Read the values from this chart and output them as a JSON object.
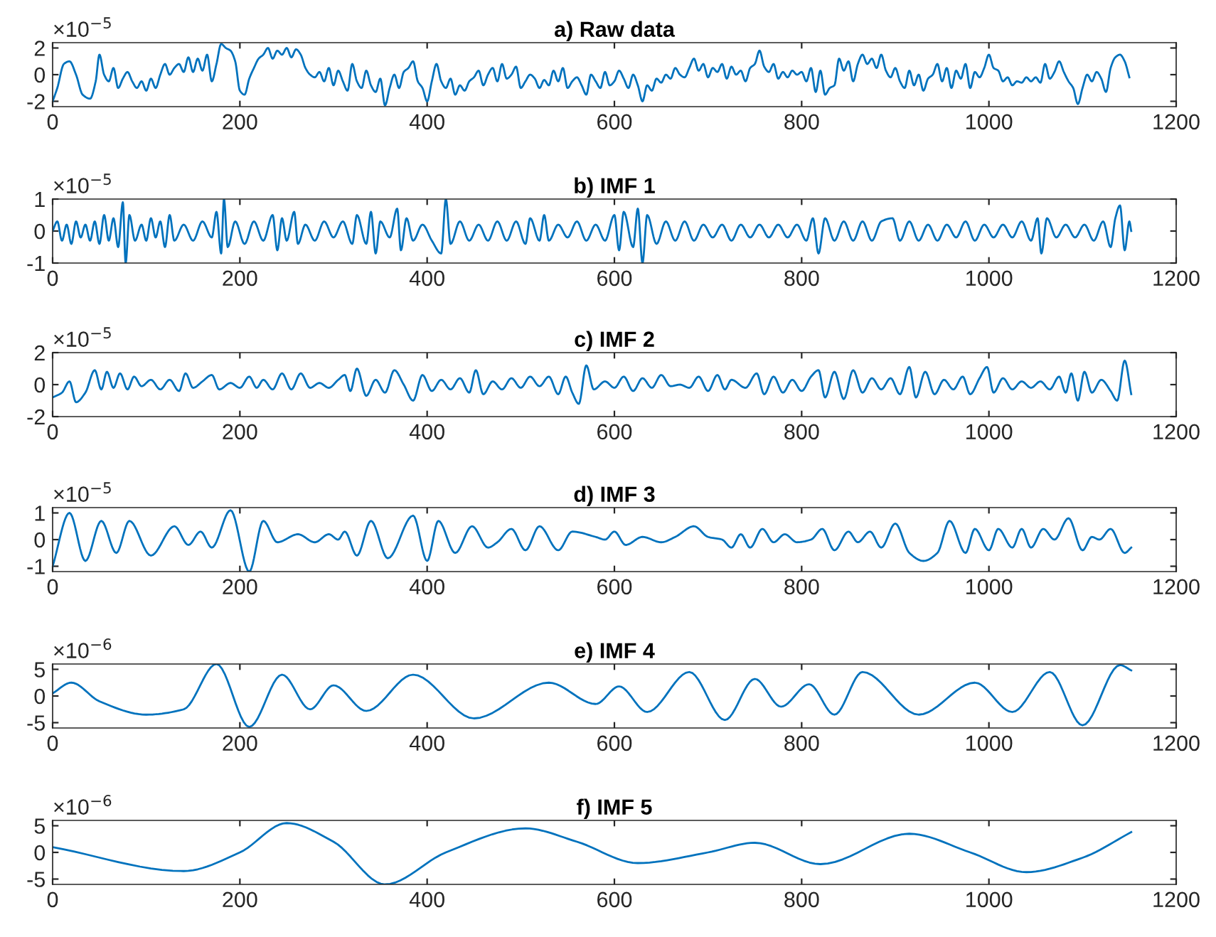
{
  "chart_data": [
    {
      "type": "line",
      "title": "a) Raw data",
      "annotations": [
        "×10$^{−5}$"
      ],
      "xlim": [
        0,
        1200
      ],
      "xticks": [
        0,
        200,
        400,
        600,
        800,
        1000,
        1200
      ],
      "ylim": [
        -2.4,
        2.4
      ],
      "yticks": [
        -2,
        0,
        2
      ],
      "x": [
        0,
        5,
        12,
        18,
        25,
        32,
        40,
        46,
        50,
        55,
        60,
        65,
        70,
        75,
        80,
        85,
        90,
        95,
        100,
        105,
        110,
        115,
        120,
        125,
        130,
        135,
        140,
        145,
        150,
        155,
        160,
        165,
        170,
        175,
        180,
        185,
        190,
        195,
        200,
        205,
        210,
        215,
        220,
        225,
        230,
        235,
        240,
        245,
        250,
        255,
        260,
        265,
        270,
        275,
        280,
        285,
        290,
        295,
        300,
        305,
        310,
        315,
        320,
        325,
        330,
        335,
        340,
        345,
        350,
        355,
        360,
        365,
        370,
        375,
        380,
        385,
        390,
        395,
        400,
        405,
        410,
        415,
        420,
        425,
        430,
        435,
        440,
        445,
        450,
        455,
        460,
        465,
        470,
        475,
        480,
        485,
        490,
        495,
        500,
        505,
        510,
        515,
        520,
        525,
        530,
        535,
        540,
        545,
        550,
        555,
        560,
        565,
        570,
        575,
        580,
        585,
        590,
        595,
        600,
        605,
        610,
        615,
        620,
        625,
        630,
        635,
        640,
        645,
        650,
        655,
        660,
        665,
        670,
        675,
        680,
        685,
        690,
        695,
        700,
        705,
        710,
        715,
        720,
        725,
        730,
        735,
        740,
        745,
        750,
        755,
        760,
        765,
        770,
        775,
        780,
        785,
        790,
        795,
        800,
        805,
        810,
        815,
        820,
        825,
        830,
        835,
        840,
        845,
        850,
        855,
        860,
        865,
        870,
        875,
        880,
        885,
        890,
        895,
        900,
        905,
        910,
        915,
        920,
        925,
        930,
        935,
        940,
        945,
        950,
        955,
        960,
        965,
        970,
        975,
        980,
        985,
        990,
        995,
        1000,
        1005,
        1010,
        1015,
        1020,
        1025,
        1030,
        1035,
        1040,
        1045,
        1050,
        1055,
        1060,
        1065,
        1070,
        1075,
        1080,
        1085,
        1090,
        1095,
        1100,
        1105,
        1110,
        1115,
        1120,
        1125,
        1130,
        1135,
        1140,
        1145,
        1150
      ],
      "series": [
        {
          "color": "#0072bd",
          "values": [
            -2,
            -1,
            0.8,
            1,
            0,
            -1.5,
            -1.8,
            -0.5,
            1.5,
            0,
            -0.5,
            0.5,
            -1,
            -0.3,
            0.2,
            -0.5,
            -1,
            -0.5,
            -1.2,
            -0.3,
            -1,
            0,
            0.8,
            0,
            0.5,
            0.8,
            0.2,
            1.3,
            0.2,
            1.2,
            0.3,
            1.5,
            -0.5,
            0.8,
            2.3,
            2,
            1.8,
            1,
            -1.2,
            -1.5,
            -0.3,
            0.5,
            1.2,
            1.5,
            2,
            1.2,
            1.8,
            1.5,
            2,
            1.3,
            1.9,
            1.5,
            0.5,
            0,
            -0.2,
            0.2,
            -0.5,
            0.5,
            -0.8,
            0.3,
            -0.5,
            -1.2,
            0.8,
            -0.5,
            -1,
            0.3,
            -0.8,
            -1.3,
            -0.3,
            -2.3,
            -1,
            0,
            -1,
            0.2,
            0.5,
            1,
            -0.5,
            -1,
            -2,
            -0.5,
            0.8,
            -0.5,
            -1,
            -0.3,
            -1.5,
            -0.8,
            -1.2,
            -0.5,
            -0.2,
            0.3,
            -0.8,
            0,
            0.5,
            -0.5,
            0.8,
            -0.3,
            0,
            0.6,
            -1,
            -0.5,
            0,
            -0.3,
            -1,
            -0.4,
            -0.8,
            0.3,
            -0.5,
            0.5,
            -1,
            -0.5,
            -0.2,
            -0.8,
            -1.5,
            0,
            -0.5,
            -1,
            0.2,
            -0.8,
            -0.5,
            0.3,
            -0.3,
            -1,
            0,
            -0.8,
            -2,
            -0.8,
            -1.2,
            -0.3,
            -0.6,
            0,
            -0.3,
            0.5,
            0,
            -0.2,
            0.5,
            1.2,
            0.3,
            0.8,
            -0.2,
            0.5,
            0.2,
            0.8,
            -0.3,
            0.6,
            0,
            0.3,
            -0.5,
            0.5,
            0.8,
            1.8,
            0.6,
            0.2,
            0.8,
            -0.3,
            0.2,
            -0.2,
            0.3,
            0,
            0.2,
            -0.5,
            0.5,
            -1.3,
            0.3,
            -1.5,
            -1,
            -0.8,
            1.2,
            0.3,
            1,
            -0.5,
            0.8,
            1.5,
            0.8,
            1.2,
            0.5,
            1.5,
            0.3,
            -0.2,
            0.5,
            -0.5,
            -1,
            0.3,
            -0.8,
            0,
            -1.2,
            -0.3,
            0,
            0.8,
            -0.5,
            0.5,
            -1,
            0.3,
            -0.3,
            0.8,
            -1,
            0.2,
            -0.2,
            0.5,
            1.5,
            0.5,
            0.3,
            -0.5,
            -0.2,
            -0.8,
            -0.5,
            -0.6,
            -0.2,
            -0.5,
            -0.2,
            -0.6,
            0.8,
            -0.3,
            0.2,
            1,
            0.2,
            -0.5,
            -1,
            -2.2,
            -1,
            0,
            -0.5,
            0.2,
            -0.3,
            -1.3,
            0.5,
            1.3,
            1.5,
            1,
            -0.2
          ]
        }
      ]
    },
    {
      "type": "line",
      "title": "b) IMF 1",
      "annotations": [
        "×10$^{−5}$"
      ],
      "xlim": [
        0,
        1200
      ],
      "xticks": [
        0,
        200,
        400,
        600,
        800,
        1000,
        1200
      ],
      "ylim": [
        -1,
        1
      ],
      "yticks": [
        -1,
        0,
        1
      ],
      "x": [
        0,
        5,
        10,
        15,
        20,
        25,
        30,
        35,
        40,
        45,
        50,
        55,
        60,
        65,
        70,
        75,
        78,
        82,
        88,
        95,
        100,
        105,
        110,
        115,
        120,
        125,
        130,
        140,
        150,
        160,
        170,
        175,
        180,
        183,
        187,
        195,
        205,
        215,
        225,
        235,
        240,
        245,
        250,
        258,
        262,
        270,
        280,
        290,
        300,
        310,
        320,
        325,
        335,
        340,
        345,
        350,
        360,
        368,
        372,
        378,
        385,
        395,
        405,
        415,
        420,
        425,
        435,
        445,
        455,
        465,
        475,
        485,
        495,
        505,
        510,
        520,
        525,
        530,
        540,
        550,
        560,
        570,
        580,
        590,
        600,
        605,
        610,
        620,
        625,
        630,
        635,
        645,
        655,
        665,
        675,
        685,
        695,
        705,
        715,
        725,
        735,
        745,
        755,
        765,
        775,
        785,
        795,
        805,
        812,
        818,
        825,
        835,
        845,
        855,
        865,
        875,
        885,
        897,
        905,
        915,
        925,
        935,
        945,
        955,
        965,
        975,
        985,
        995,
        1005,
        1015,
        1025,
        1035,
        1045,
        1052,
        1056,
        1062,
        1072,
        1082,
        1092,
        1102,
        1112,
        1122,
        1130,
        1135,
        1140,
        1145,
        1150,
        1152
      ],
      "series": [
        {
          "color": "#0072bd",
          "values": [
            0,
            0.3,
            -0.3,
            0.2,
            -0.4,
            0.3,
            -0.2,
            0.2,
            -0.3,
            0.3,
            -0.4,
            0.5,
            -0.3,
            0.4,
            -0.5,
            0.9,
            -1,
            0.5,
            -0.3,
            0.2,
            -0.3,
            0.4,
            -0.2,
            0.3,
            -0.5,
            0.5,
            -0.3,
            0.2,
            -0.3,
            0.3,
            -0.2,
            0.6,
            -0.7,
            1,
            -0.5,
            0.3,
            -0.4,
            0.3,
            -0.3,
            0.5,
            -0.6,
            0.4,
            -0.3,
            0.6,
            -0.4,
            0.2,
            -0.3,
            0.3,
            -0.2,
            0.3,
            -0.4,
            0.5,
            -0.4,
            0.6,
            -0.7,
            0.3,
            -0.2,
            0.7,
            -0.6,
            0.4,
            -0.3,
            0.2,
            -0.3,
            -0.7,
            1,
            -0.4,
            0.3,
            -0.3,
            0.2,
            -0.3,
            0.3,
            -0.3,
            0.3,
            -0.4,
            0.4,
            -0.3,
            0.5,
            -0.3,
            0.2,
            -0.2,
            0.3,
            -0.3,
            0.2,
            -0.3,
            0.5,
            -0.6,
            0.6,
            -0.5,
            0.7,
            -1,
            0.5,
            -0.4,
            0.3,
            -0.3,
            0.3,
            -0.3,
            0.2,
            -0.2,
            0.2,
            -0.3,
            0.2,
            -0.2,
            0.2,
            -0.2,
            0.2,
            -0.2,
            0.2,
            -0.3,
            0.4,
            -0.7,
            0.4,
            -0.3,
            0.3,
            -0.3,
            0.3,
            -0.3,
            0.3,
            0.4,
            -0.3,
            0.3,
            -0.3,
            0.2,
            -0.3,
            0.2,
            -0.2,
            0.3,
            -0.3,
            0.2,
            -0.2,
            0.2,
            -0.2,
            0.3,
            -0.3,
            0.4,
            -0.7,
            0.4,
            -0.2,
            0.2,
            -0.2,
            0.2,
            -0.3,
            0.3,
            -0.5,
            0.4,
            0.8,
            -0.6,
            0.3,
            0
          ]
        }
      ]
    },
    {
      "type": "line",
      "title": "c) IMF 2",
      "annotations": [
        "×10$^{−5}$"
      ],
      "xlim": [
        0,
        1200
      ],
      "xticks": [
        0,
        200,
        400,
        600,
        800,
        1000,
        1200
      ],
      "ylim": [
        -2,
        2
      ],
      "yticks": [
        -2,
        0,
        2
      ],
      "x": [
        0,
        10,
        18,
        25,
        35,
        45,
        52,
        58,
        65,
        72,
        80,
        87,
        95,
        105,
        115,
        125,
        135,
        142,
        150,
        160,
        170,
        178,
        190,
        200,
        210,
        218,
        225,
        235,
        245,
        255,
        265,
        275,
        285,
        295,
        305,
        312,
        318,
        325,
        335,
        345,
        355,
        365,
        375,
        385,
        395,
        405,
        415,
        425,
        435,
        445,
        452,
        460,
        470,
        480,
        490,
        500,
        510,
        520,
        530,
        540,
        548,
        555,
        562,
        570,
        578,
        590,
        600,
        610,
        620,
        630,
        640,
        650,
        660,
        670,
        680,
        690,
        700,
        710,
        718,
        725,
        740,
        752,
        760,
        770,
        780,
        790,
        800,
        810,
        818,
        825,
        835,
        845,
        855,
        865,
        875,
        885,
        895,
        905,
        915,
        922,
        932,
        942,
        952,
        962,
        972,
        980,
        990,
        998,
        1005,
        1015,
        1025,
        1035,
        1045,
        1055,
        1065,
        1075,
        1082,
        1088,
        1095,
        1102,
        1110,
        1120,
        1130,
        1137,
        1145,
        1152
      ],
      "series": [
        {
          "color": "#0072bd",
          "values": [
            -0.8,
            -0.5,
            0.2,
            -1.1,
            -0.5,
            0.9,
            -0.3,
            0.8,
            -0.2,
            0.7,
            -0.3,
            0.5,
            -0.1,
            0.3,
            -0.3,
            0.3,
            -0.4,
            0.7,
            -0.2,
            0.2,
            0.6,
            -0.3,
            0.1,
            -0.2,
            0.5,
            -0.2,
            0.3,
            -0.3,
            0.7,
            -0.3,
            0.7,
            -0.2,
            0.1,
            -0.2,
            0.3,
            0.6,
            -0.4,
            1,
            -0.7,
            0.3,
            -0.5,
            0.9,
            0,
            -1,
            0.6,
            -0.4,
            0.3,
            -0.3,
            0.4,
            -0.5,
            0.9,
            -0.6,
            0.2,
            -0.3,
            0.4,
            -0.2,
            0.5,
            -0.1,
            0.5,
            -0.6,
            0.5,
            -0.5,
            -1.2,
            1.2,
            -0.3,
            0.2,
            -0.2,
            0.5,
            -0.4,
            0.4,
            -0.2,
            0.6,
            -0.1,
            0,
            -0.2,
            0.5,
            -0.4,
            0.6,
            -0.3,
            0.3,
            -0.2,
            0.7,
            -0.6,
            0.5,
            -0.5,
            0.3,
            -0.4,
            0.5,
            0.9,
            -0.8,
            0.8,
            -0.9,
            0.9,
            -0.5,
            0.4,
            -0.3,
            0.4,
            -0.6,
            1.1,
            -0.8,
            0.8,
            -0.6,
            0.3,
            -0.3,
            0.5,
            -0.6,
            0.4,
            1.1,
            -0.5,
            0.4,
            -0.3,
            0.2,
            -0.2,
            0.2,
            -0.3,
            0.5,
            -0.5,
            0.7,
            -1,
            0.8,
            -0.5,
            0.3,
            -0.4,
            -1,
            1.5,
            -0.6
          ]
        }
      ]
    },
    {
      "type": "line",
      "title": "d) IMF 3",
      "annotations": [
        "×10$^{−5}$"
      ],
      "xlim": [
        0,
        1200
      ],
      "xticks": [
        0,
        200,
        400,
        600,
        800,
        1000,
        1200
      ],
      "ylim": [
        -1.2,
        1.2
      ],
      "yticks": [
        -1,
        0,
        1
      ],
      "x": [
        0,
        18,
        35,
        52,
        68,
        82,
        105,
        130,
        145,
        158,
        170,
        190,
        210,
        225,
        240,
        262,
        280,
        295,
        305,
        312,
        325,
        340,
        358,
        385,
        400,
        412,
        430,
        448,
        465,
        475,
        490,
        505,
        520,
        540,
        555,
        580,
        590,
        600,
        612,
        630,
        650,
        665,
        685,
        700,
        715,
        725,
        735,
        745,
        758,
        770,
        782,
        795,
        810,
        822,
        835,
        850,
        860,
        873,
        885,
        900,
        915,
        930,
        945,
        958,
        975,
        985,
        1000,
        1010,
        1025,
        1035,
        1045,
        1058,
        1070,
        1085,
        1100,
        1110,
        1118,
        1130,
        1145,
        1152
      ],
      "series": [
        {
          "color": "#0072bd",
          "values": [
            -1,
            1,
            -0.8,
            0.7,
            -0.5,
            0.7,
            -0.6,
            0.5,
            -0.2,
            0.3,
            -0.3,
            1.1,
            -1.2,
            0.7,
            -0.1,
            0.2,
            -0.1,
            0.2,
            0,
            0.3,
            -0.6,
            0.7,
            -0.7,
            0.9,
            -0.8,
            0.7,
            -0.5,
            0.5,
            -0.3,
            -0.1,
            0.4,
            -0.4,
            0.5,
            -0.4,
            0.3,
            0.1,
            0,
            0.3,
            -0.2,
            0.1,
            -0.1,
            0.1,
            0.5,
            0.1,
            0,
            -0.3,
            0.2,
            -0.3,
            0.4,
            -0.1,
            0.2,
            -0.1,
            0,
            0.4,
            -0.4,
            0.3,
            -0.1,
            0.3,
            -0.3,
            0.6,
            -0.5,
            -0.8,
            -0.5,
            0.7,
            -0.5,
            0.4,
            -0.4,
            0.4,
            -0.3,
            0.4,
            -0.3,
            0.4,
            0,
            0.8,
            -0.4,
            0.1,
            0,
            0.4,
            -0.5,
            -0.3
          ]
        }
      ]
    },
    {
      "type": "line",
      "title": "e) IMF 4",
      "annotations": [
        "×10$^{−6}$"
      ],
      "xlim": [
        0,
        1200
      ],
      "xticks": [
        0,
        200,
        400,
        600,
        800,
        1000,
        1200
      ],
      "ylim": [
        -6,
        6
      ],
      "yticks": [
        -5,
        0,
        5
      ],
      "x": [
        0,
        20,
        50,
        100,
        140,
        175,
        210,
        245,
        275,
        300,
        335,
        385,
        450,
        530,
        580,
        605,
        635,
        680,
        718,
        750,
        778,
        808,
        835,
        865,
        925,
        985,
        1025,
        1065,
        1100,
        1140,
        1152
      ],
      "series": [
        {
          "color": "#0072bd",
          "values": [
            0.5,
            2.5,
            -1,
            -3.5,
            -2.5,
            6,
            -5.8,
            4,
            -2.5,
            2,
            -2.8,
            4,
            -4.2,
            2.5,
            -1.5,
            1.8,
            -3,
            4.5,
            -4.5,
            3.2,
            -2,
            2.2,
            -3.5,
            4.5,
            -3.5,
            2.5,
            -3,
            4.5,
            -5.5,
            5.8,
            4.8
          ]
        }
      ]
    },
    {
      "type": "line",
      "title": "f) IMF 5",
      "annotations": [
        "×10$^{−6}$"
      ],
      "xlim": [
        0,
        1200
      ],
      "xticks": [
        0,
        200,
        400,
        600,
        800,
        1000,
        1200
      ],
      "ylim": [
        -6,
        6
      ],
      "yticks": [
        -5,
        0,
        5
      ],
      "x": [
        0,
        140,
        200,
        250,
        300,
        355,
        420,
        505,
        560,
        625,
        700,
        750,
        820,
        915,
        980,
        1040,
        1100,
        1152
      ],
      "series": [
        {
          "color": "#0072bd",
          "values": [
            1,
            -3.5,
            0,
            5.5,
            2,
            -6,
            0,
            4.5,
            2,
            -2,
            0,
            1.8,
            -2.2,
            3.5,
            0,
            -3.7,
            -1,
            3.8
          ]
        }
      ]
    }
  ]
}
